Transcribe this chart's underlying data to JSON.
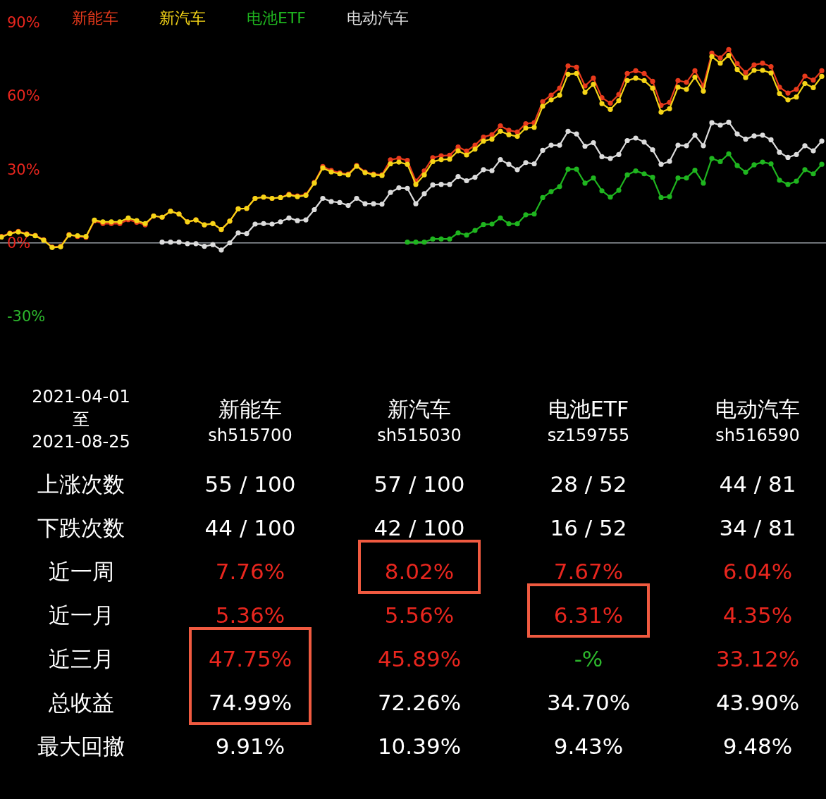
{
  "chart_data": [
    {
      "type": "line",
      "categories": [
        null,
        null,
        null,
        null,
        null,
        null,
        null,
        null,
        null,
        null,
        null,
        null,
        null,
        null,
        null,
        null,
        null,
        null,
        null,
        null,
        null,
        null,
        null,
        null,
        null,
        null,
        null,
        null,
        null,
        null,
        null,
        null,
        null,
        null,
        null,
        null,
        null,
        null,
        null,
        null,
        null,
        null,
        null,
        null,
        null,
        null,
        null,
        null,
        null,
        null,
        null,
        null,
        null,
        null,
        null,
        null,
        null,
        null,
        null,
        null,
        null,
        null,
        null,
        null,
        null,
        null,
        null,
        null,
        null,
        null,
        null,
        null,
        null,
        null,
        null,
        null,
        null,
        null,
        null,
        null,
        null,
        null,
        null,
        null,
        null,
        null,
        null,
        null,
        null,
        null,
        null,
        null,
        null,
        null,
        null,
        null,
        null,
        null
      ],
      "ylim": [
        -30,
        90
      ],
      "yticks": [
        {
          "value": 90,
          "label": "90%"
        },
        {
          "value": 60,
          "label": "60%"
        },
        {
          "value": 30,
          "label": "30%"
        },
        {
          "value": 0,
          "label": "0%"
        },
        {
          "value": -30,
          "label": "-30%"
        }
      ],
      "marker": "circle",
      "line_style": "solid",
      "legend": "top left",
      "ref_lines": [
        {
          "axis": "y",
          "value": 0,
          "color": "#9aa0a8"
        }
      ],
      "series": [
        {
          "name": "新能车",
          "color": "#e83a1c",
          "values": [
            2.6,
            4.0,
            4.7,
            3.7,
            3.1,
            1.3,
            -1.7,
            -1.4,
            3.4,
            2.6,
            2.3,
            9.0,
            7.9,
            7.9,
            7.9,
            9.5,
            8.4,
            7.4,
            11.0,
            10.5,
            12.9,
            11.8,
            8.6,
            9.4,
            7.4,
            7.9,
            5.5,
            8.9,
            13.9,
            14.1,
            18.2,
            18.7,
            18.2,
            18.5,
            19.9,
            19.2,
            19.7,
            24.7,
            31.2,
            29.6,
            28.6,
            28.1,
            31.6,
            29.0,
            28.1,
            27.8,
            33.9,
            34.6,
            33.7,
            25.2,
            29.4,
            34.8,
            35.6,
            35.8,
            39.2,
            37.5,
            39.9,
            43.2,
            44.2,
            47.8,
            46.0,
            45.3,
            48.7,
            49.1,
            57.7,
            60.3,
            63.2,
            72.3,
            71.8,
            64.1,
            67.3,
            59.3,
            57.1,
            60.6,
            69.2,
            70.3,
            69.2,
            66.0,
            56.2,
            57.4,
            66.3,
            65.6,
            70.3,
            64.1,
            77.5,
            75.6,
            79.0,
            73.2,
            69.6,
            72.7,
            73.4,
            72.0,
            63.6,
            61.2,
            62.7,
            68.1,
            66.5,
            70.3
          ]
        },
        {
          "name": "新汽车",
          "color": "#f5d517",
          "values": [
            2.4,
            3.8,
            4.5,
            3.5,
            2.9,
            1.1,
            -1.9,
            -1.6,
            3.2,
            2.9,
            2.6,
            9.3,
            8.6,
            8.6,
            8.6,
            10.2,
            9.1,
            7.9,
            11.0,
            10.5,
            12.9,
            11.8,
            8.6,
            9.4,
            7.4,
            7.9,
            5.5,
            8.9,
            13.9,
            14.1,
            18.2,
            18.7,
            18.2,
            18.5,
            19.6,
            18.9,
            19.4,
            24.4,
            30.6,
            29.0,
            28.2,
            27.8,
            31.3,
            28.7,
            27.8,
            27.5,
            32.3,
            33.0,
            32.1,
            23.9,
            27.8,
            33.2,
            34.0,
            34.2,
            37.6,
            35.9,
            38.3,
            41.6,
            42.4,
            45.6,
            44.2,
            43.5,
            46.9,
            47.2,
            55.8,
            58.4,
            60.3,
            68.9,
            69.2,
            61.5,
            64.8,
            56.9,
            54.5,
            58.1,
            66.3,
            67.3,
            66.3,
            63.2,
            53.4,
            54.8,
            63.6,
            62.7,
            67.7,
            62.0,
            76.1,
            73.4,
            76.6,
            70.8,
            67.5,
            70.5,
            70.5,
            69.4,
            61.0,
            58.4,
            59.6,
            65.1,
            63.4,
            68.0
          ]
        },
        {
          "name": "电池ETF",
          "color": "#1fb51f",
          "values": [
            null,
            null,
            null,
            null,
            null,
            null,
            null,
            null,
            null,
            null,
            null,
            null,
            null,
            null,
            null,
            null,
            null,
            null,
            null,
            null,
            null,
            null,
            null,
            null,
            null,
            null,
            null,
            null,
            null,
            null,
            null,
            null,
            null,
            null,
            null,
            null,
            null,
            null,
            null,
            null,
            null,
            null,
            null,
            null,
            null,
            null,
            null,
            null,
            0.3,
            0.3,
            0.3,
            1.6,
            1.6,
            1.6,
            4.1,
            3.2,
            5.1,
            7.5,
            7.7,
            10.2,
            7.8,
            7.8,
            11.5,
            11.8,
            18.5,
            21.0,
            23.0,
            30.1,
            30.1,
            24.4,
            26.5,
            21.3,
            18.7,
            21.5,
            27.8,
            29.4,
            28.2,
            26.8,
            18.5,
            18.9,
            26.5,
            26.5,
            29.7,
            24.4,
            34.5,
            33.2,
            36.4,
            31.6,
            28.9,
            31.9,
            33.0,
            32.3,
            25.6,
            23.9,
            25.2,
            29.9,
            28.2,
            32.1
          ]
        },
        {
          "name": "电动汽车",
          "color": "#dcdcdc",
          "values": [
            null,
            null,
            null,
            null,
            null,
            null,
            null,
            null,
            null,
            null,
            null,
            null,
            null,
            null,
            null,
            null,
            null,
            null,
            null,
            0.3,
            0.3,
            0.3,
            -0.3,
            -0.3,
            -1.4,
            -0.7,
            -2.9,
            0,
            4.1,
            3.8,
            7.7,
            7.9,
            7.7,
            8.6,
            10.2,
            9.1,
            9.4,
            13.6,
            18.2,
            16.9,
            16.5,
            15.3,
            18.2,
            16.0,
            16.0,
            15.8,
            20.6,
            22.5,
            22.3,
            16.0,
            20.1,
            23.7,
            23.9,
            23.9,
            27.1,
            25.4,
            26.8,
            29.9,
            29.5,
            34.0,
            32.1,
            29.9,
            32.8,
            32.3,
            37.8,
            39.9,
            39.9,
            45.6,
            44.5,
            39.5,
            40.9,
            35.2,
            34.5,
            36.1,
            41.8,
            42.8,
            41.2,
            38.0,
            32.1,
            33.3,
            39.9,
            39.7,
            44.0,
            39.7,
            49.1,
            48.1,
            49.3,
            44.5,
            42.4,
            43.7,
            44.0,
            42.1,
            37.0,
            34.9,
            36.1,
            39.7,
            37.6,
            41.6
          ]
        }
      ]
    },
    {
      "type": "other",
      "annotations": [
        "2021-04-01\n至\n2021-08-25"
      ],
      "categories": [
        "新能车\nsh515700",
        "新汽车\nsh515030",
        "电池ETF\nsz159755",
        "电动汽车\nsh516590"
      ],
      "y_categories": [
        "上涨次数",
        "下跌次数",
        "近一周",
        "近一月",
        "近三月",
        "总收益",
        "最大回撤"
      ],
      "cell_labels": [
        [
          "55 / 100",
          "57 / 100",
          "28 / 52",
          "44 / 81"
        ],
        [
          "44 / 100",
          "42 / 100",
          "16 / 52",
          "34 / 81"
        ],
        [
          "7.76%",
          "8.02%",
          "7.67%",
          "6.04%"
        ],
        [
          "5.36%",
          "5.56%",
          "6.31%",
          "4.35%"
        ],
        [
          "47.75%",
          "45.89%",
          "-%",
          "33.12%"
        ],
        [
          "74.99%",
          "72.26%",
          "34.70%",
          "43.90%"
        ],
        [
          "9.91%",
          "10.39%",
          "9.43%",
          "9.48%"
        ]
      ],
      "colors": [
        [
          "#ffffff",
          "#ffffff",
          "#ffffff",
          "#ffffff"
        ],
        [
          "#ffffff",
          "#ffffff",
          "#ffffff",
          "#ffffff"
        ],
        [
          "#e8261e",
          "#e8261e",
          "#e8261e",
          "#e8261e"
        ],
        [
          "#e8261e",
          "#e8261e",
          "#e8261e",
          "#e8261e"
        ],
        [
          "#e8261e",
          "#e8261e",
          "#2db82d",
          "#e8261e"
        ],
        [
          "#ffffff",
          "#ffffff",
          "#ffffff",
          "#ffffff"
        ],
        [
          "#ffffff",
          "#ffffff",
          "#ffffff",
          "#ffffff"
        ]
      ]
    }
  ]
}
